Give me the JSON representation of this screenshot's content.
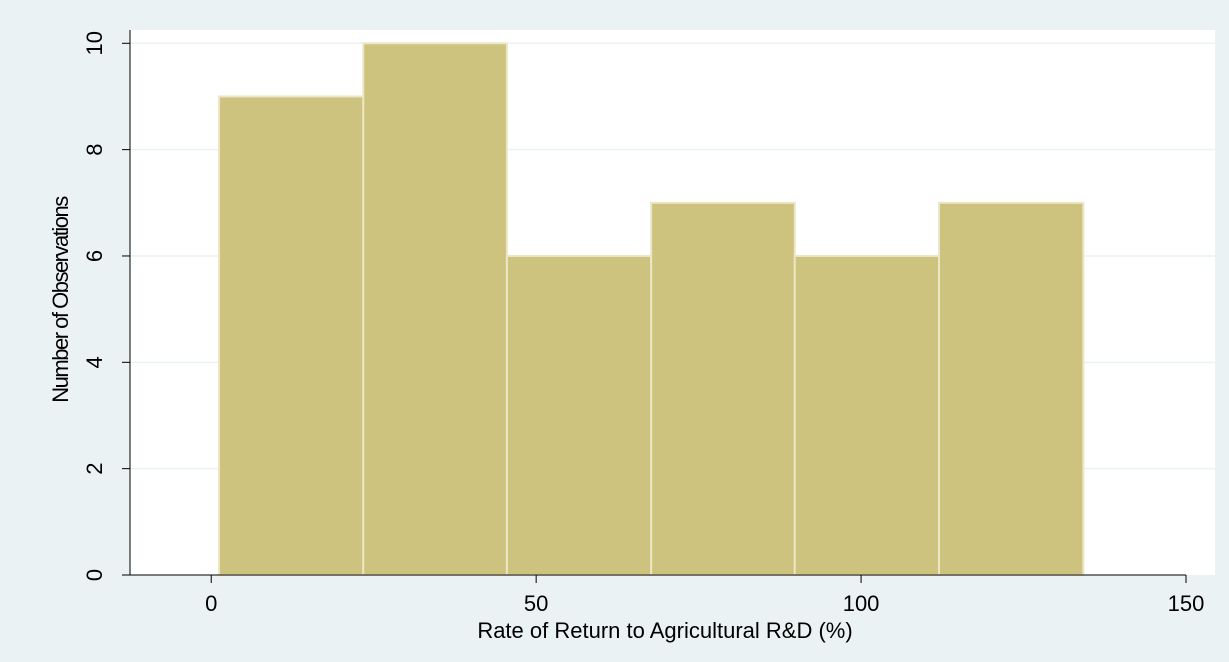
{
  "chart_data": {
    "type": "histogram",
    "x_label": "Rate of Return to Agricultural R&D (%)",
    "y_label": "Number of Observations",
    "bins": [
      1.2,
      23.4,
      45.5,
      67.7,
      89.8,
      112,
      134.2
    ],
    "values": [
      9,
      10,
      6,
      7,
      6,
      7
    ],
    "color": "#cdc37e",
    "xlim": [
      -12.5,
      150
    ],
    "ylim": [
      0,
      10.25
    ],
    "xticks": [
      0,
      50,
      100,
      150
    ],
    "yticks": [
      0,
      2,
      4,
      6,
      8,
      10
    ],
    "grid": true
  }
}
